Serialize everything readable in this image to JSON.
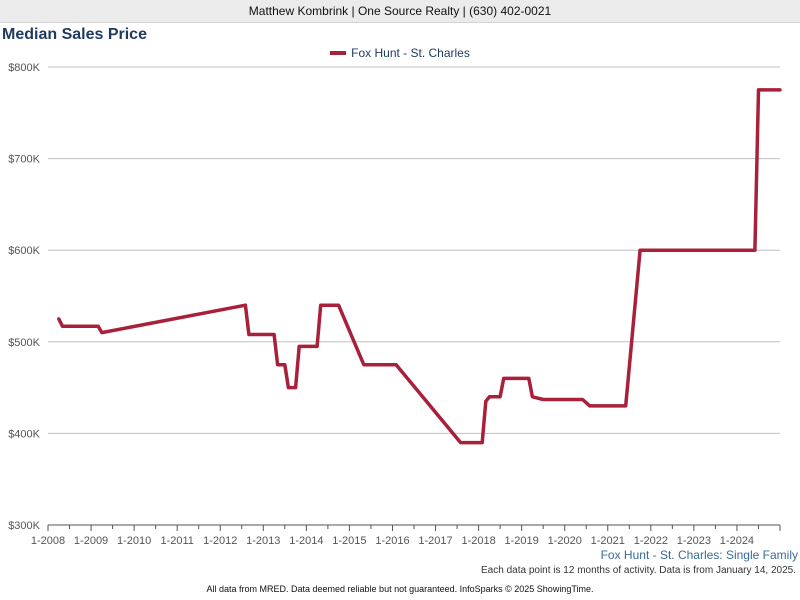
{
  "header": {
    "text": "Matthew Kombrink | One Source Realty | (630) 402-0021"
  },
  "caption": "Fox Hunt - St. Charles: Single Family",
  "note": "Each data point is 12 months of activity. Data is from January 14, 2025.",
  "footer": "All data from MRED. Data deemed reliable but not guaranteed. InfoSparks © 2025 ShowingTime.",
  "colors": {
    "series": "#a8203a",
    "grid": "#c0c0c0",
    "axis": "#555555",
    "title": "#1e3a5f"
  },
  "chart_data": {
    "type": "line",
    "title": "Median Sales Price",
    "xlabel": "",
    "ylabel": "",
    "ylim": [
      300000,
      800000
    ],
    "y_ticks": [
      {
        "value": 300000,
        "label": "$300K"
      },
      {
        "value": 400000,
        "label": "$400K"
      },
      {
        "value": 500000,
        "label": "$500K"
      },
      {
        "value": 600000,
        "label": "$600K"
      },
      {
        "value": 700000,
        "label": "$700K"
      },
      {
        "value": 800000,
        "label": "$800K"
      }
    ],
    "xlim": [
      "2008-01",
      "2025-01"
    ],
    "x_ticks": [
      "1-2008",
      "1-2009",
      "1-2010",
      "1-2011",
      "1-2012",
      "1-2013",
      "1-2014",
      "1-2015",
      "1-2016",
      "1-2017",
      "1-2018",
      "1-2019",
      "1-2020",
      "1-2021",
      "1-2022",
      "1-2023",
      "1-2024"
    ],
    "grid": true,
    "legend_position": "top-center",
    "series": [
      {
        "name": "Fox Hunt - St. Charles",
        "points": [
          [
            "2008-04",
            525000
          ],
          [
            "2008-05",
            517000
          ],
          [
            "2009-03",
            517000
          ],
          [
            "2009-04",
            510000
          ],
          [
            "2012-08",
            540000
          ],
          [
            "2012-09",
            508000
          ],
          [
            "2013-04",
            508000
          ],
          [
            "2013-05",
            475000
          ],
          [
            "2013-07",
            475000
          ],
          [
            "2013-08",
            450000
          ],
          [
            "2013-10",
            450000
          ],
          [
            "2013-11",
            495000
          ],
          [
            "2014-04",
            495000
          ],
          [
            "2014-05",
            540000
          ],
          [
            "2014-10",
            540000
          ],
          [
            "2015-05",
            475000
          ],
          [
            "2016-02",
            475000
          ],
          [
            "2017-08",
            390000
          ],
          [
            "2018-02",
            390000
          ],
          [
            "2018-03",
            435000
          ],
          [
            "2018-04",
            440000
          ],
          [
            "2018-07",
            440000
          ],
          [
            "2018-08",
            460000
          ],
          [
            "2019-03",
            460000
          ],
          [
            "2019-04",
            440000
          ],
          [
            "2019-07",
            437000
          ],
          [
            "2020-06",
            437000
          ],
          [
            "2020-08",
            430000
          ],
          [
            "2021-06",
            430000
          ],
          [
            "2021-10",
            600000
          ],
          [
            "2024-06",
            600000
          ],
          [
            "2024-07",
            775000
          ],
          [
            "2025-01",
            775000
          ]
        ]
      }
    ]
  }
}
